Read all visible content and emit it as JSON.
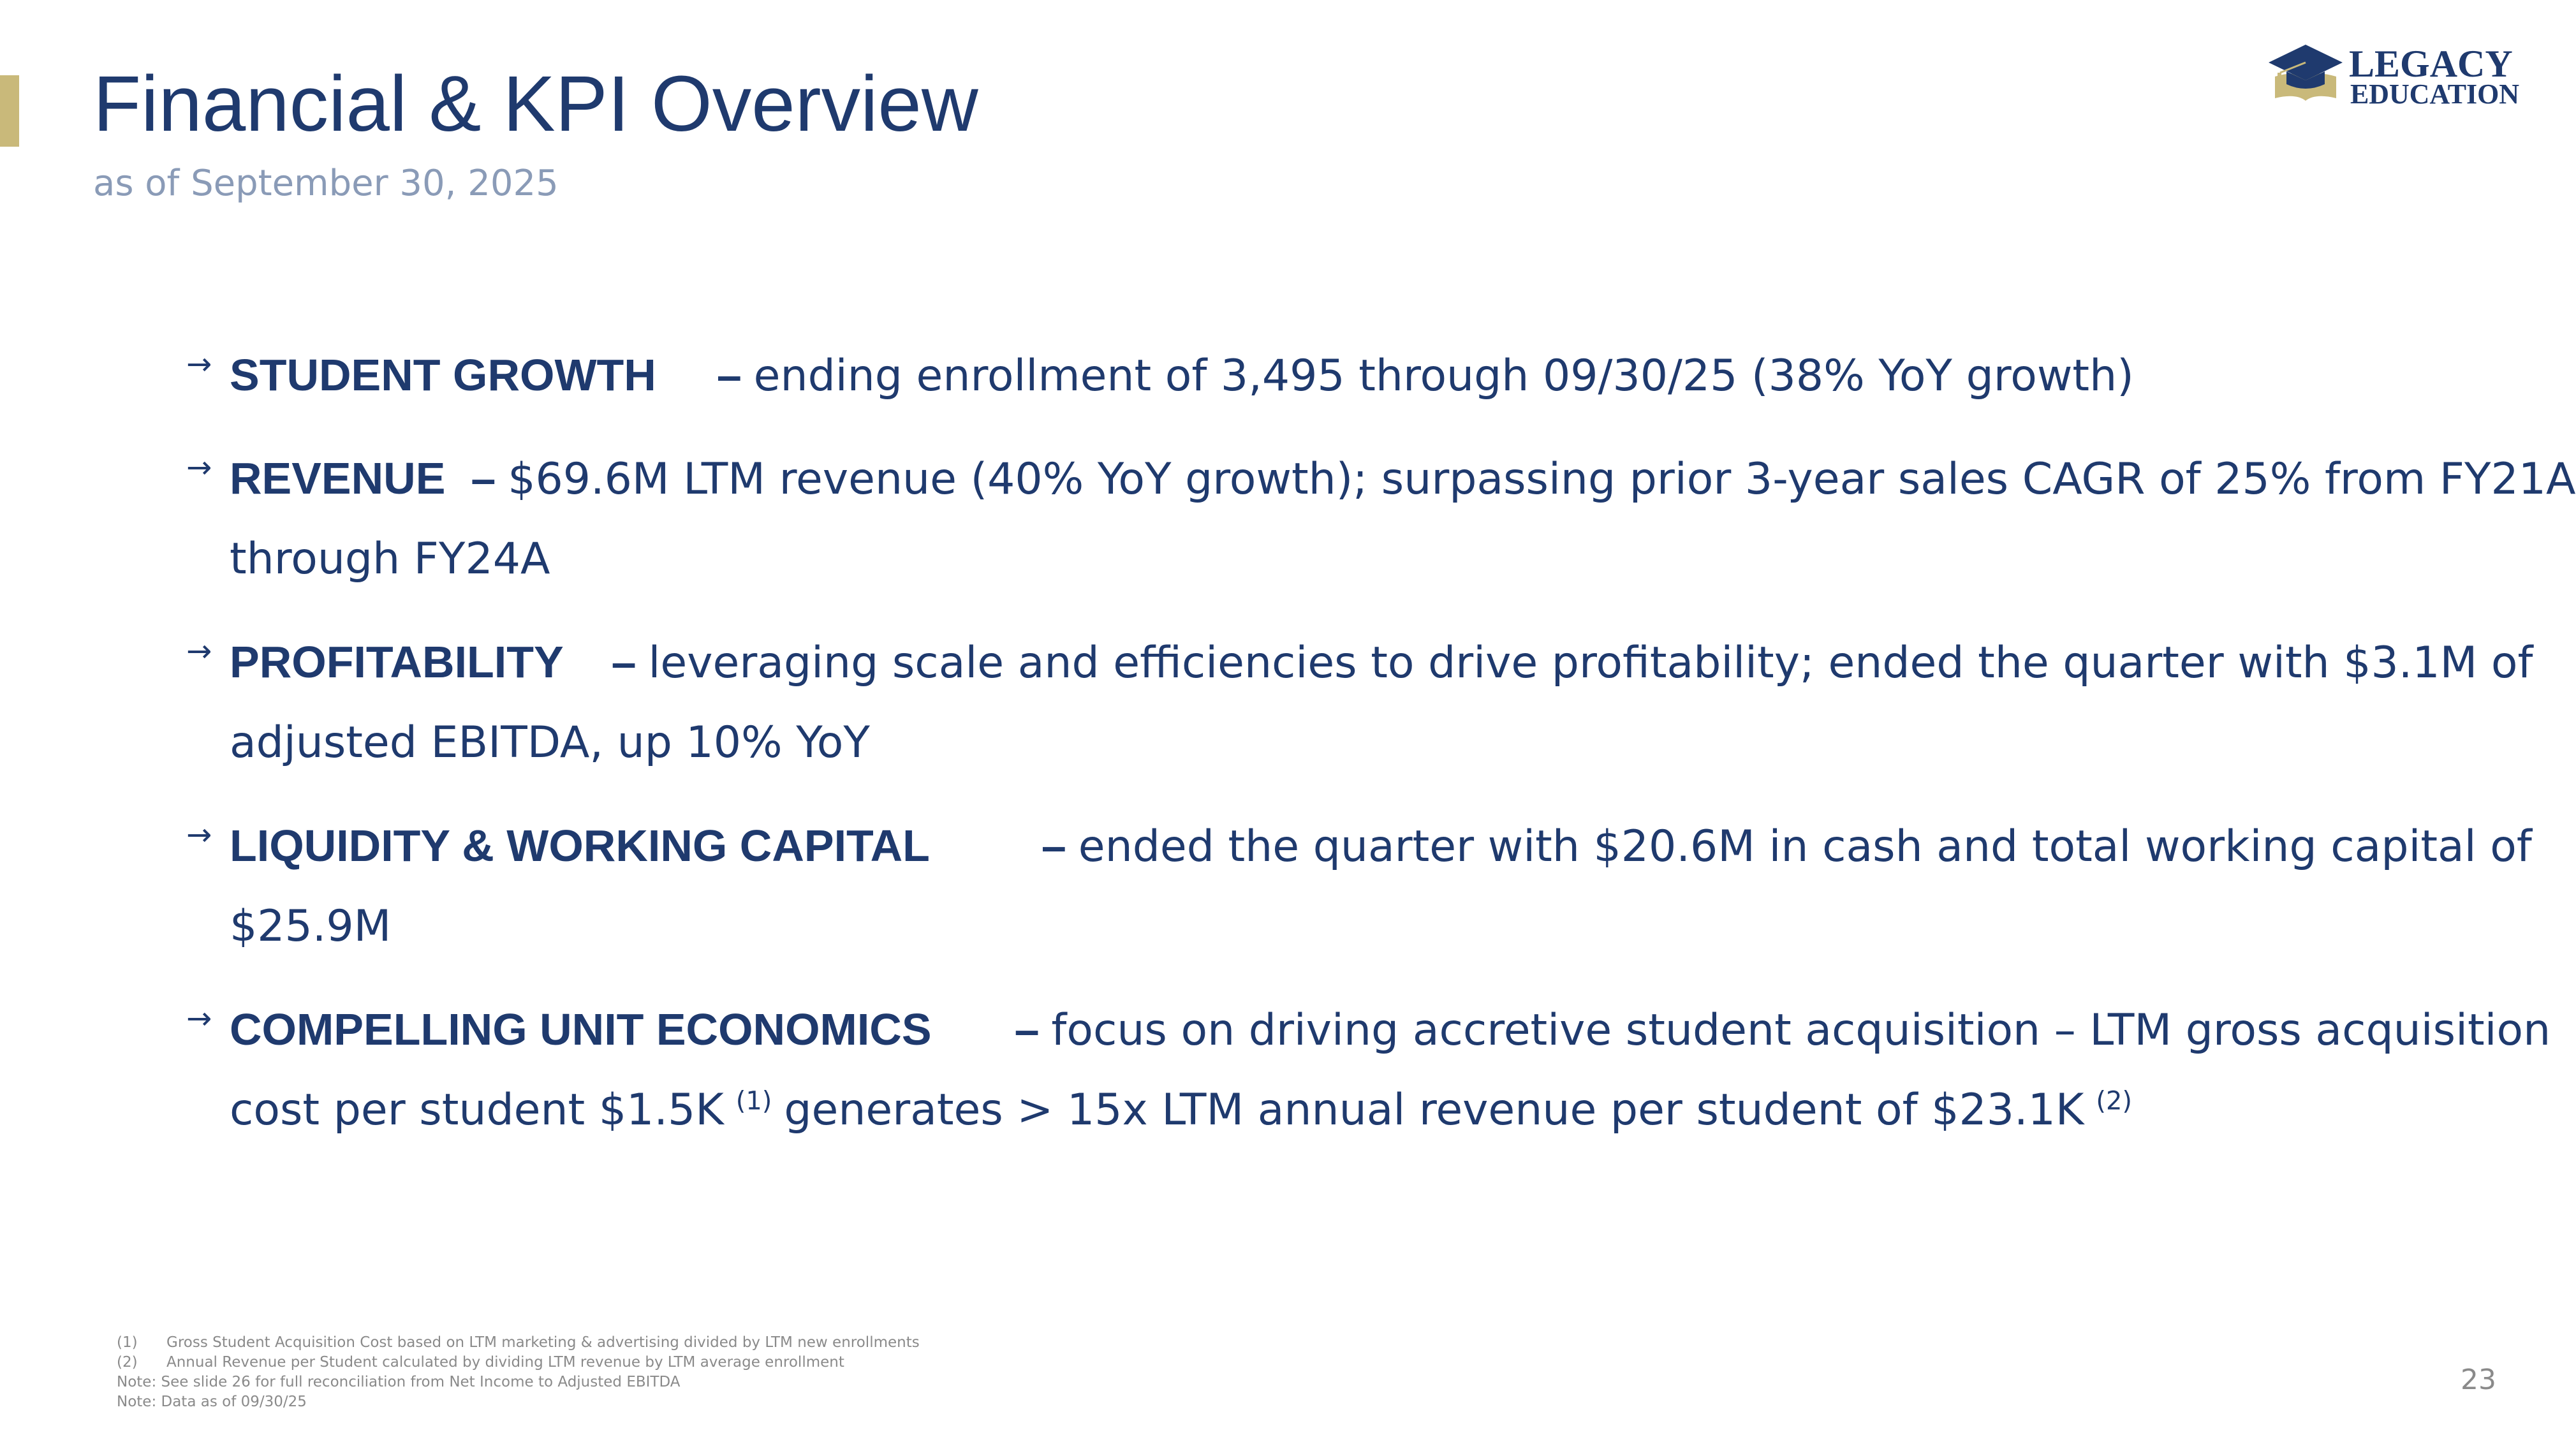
{
  "header": {
    "title": "Financial & KPI Overview",
    "subtitle": "as of September 30, 2025"
  },
  "logo": {
    "line1": "LEGACY",
    "line2": "EDUCATION",
    "icon": "graduation-cap-book-icon",
    "color_navy": "#1f3a6e",
    "color_gold": "#c9b97a"
  },
  "bullets": [
    {
      "heading": "STUDENT GROWTH",
      "dash": "–",
      "line1": "ending enrollment of 3,495 through 09/30/25 (38% YoY growth)",
      "line2": ""
    },
    {
      "heading": "REVENUE",
      "dash": "–",
      "line1": "$69.6M LTM revenue (40% YoY growth); surpassing prior 3-year sales CAGR of 25% from FY21A",
      "line2": "through FY24A"
    },
    {
      "heading": "PROFITABILITY",
      "dash": "–",
      "line1": "leveraging scale and efficiencies to drive profitability; ended the quarter with $3.1M of",
      "line2": "adjusted EBITDA, up 10% YoY"
    },
    {
      "heading": "LIQUIDITY & WORKING CAPITAL",
      "dash": "–",
      "line1": "ended the quarter with $20.6M in cash and total working capital of",
      "line2": "$25.9M"
    },
    {
      "heading": "COMPELLING UNIT ECONOMICS",
      "dash": "–",
      "line1": "focus on driving accretive student acquisition – LTM gross acquisition",
      "line2_a": "cost per student $1.5K",
      "sup1": "(1)",
      "line2_b": "generates > 15x LTM annual revenue per student of $23.1K",
      "sup2": "(2)"
    }
  ],
  "footnotes": [
    {
      "num": "(1)",
      "text": "Gross Student Acquisition Cost based on LTM marketing & advertising divided by LTM new enrollments"
    },
    {
      "num": "(2)",
      "text": "Annual Revenue per Student calculated by dividing LTM revenue by LTM average enrollment"
    }
  ],
  "notes": [
    "Note: See slide 26 for full reconciliation from Net Income to Adjusted EBITDA",
    "Note: Data as of 09/30/25"
  ],
  "page_number": "23",
  "colors": {
    "navy": "#1f3a6e",
    "gold": "#c9b97a",
    "subtitle": "#8a9bb7",
    "footnote": "#8a8a8a"
  }
}
